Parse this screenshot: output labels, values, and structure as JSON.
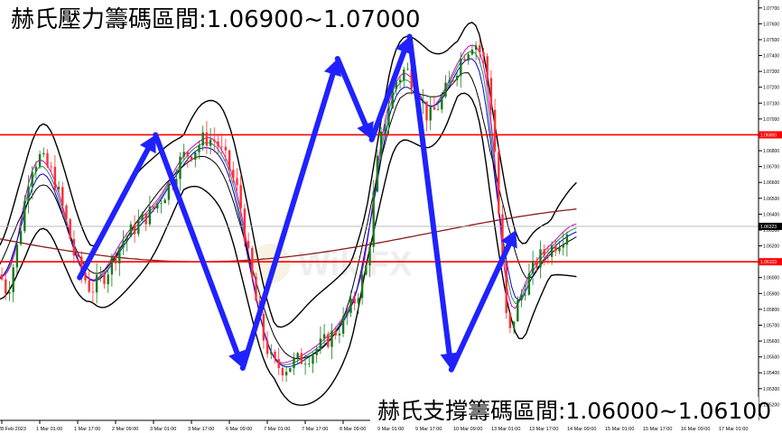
{
  "header": {
    "resistance_title": "赫氏壓力籌碼區間:1.06900~1.07000",
    "support_title": "赫氏支撐籌碼區間:1.06000~1.06100"
  },
  "watermark": {
    "text": "WikiFX"
  },
  "chart_data": {
    "type": "candlestick",
    "ylim": [
      1.051,
      1.0775
    ],
    "y_ticks": [
      "1.07700",
      "1.07600",
      "1.07500",
      "1.07400",
      "1.07300",
      "1.07200",
      "1.07100",
      "1.07000",
      "1.06900",
      "1.06800",
      "1.06700",
      "1.06600",
      "1.06500",
      "1.06400",
      "1.06300",
      "1.06200",
      "1.06100",
      "1.06000",
      "1.05900",
      "1.05800",
      "1.05700",
      "1.05600",
      "1.05500",
      "1.05400",
      "1.05300",
      "1.05200",
      "1.05100"
    ],
    "x_ticks": [
      "28 Feb 2023",
      "1 Mar 01:00",
      "1 Mar 17:00",
      "2 Mar 09:00",
      "3 Mar 01:00",
      "3 Mar 17:00",
      "6 Mar 09:00",
      "7 Mar 01:00",
      "7 Mar 17:00",
      "8 Mar 09:00",
      "9 Mar 01:00",
      "9 Mar 17:00",
      "10 Mar 09:00",
      "13 Mar 01:00",
      "13 Mar 17:00",
      "14 Mar 09:00",
      "15 Mar 01:00",
      "15 Mar 17:00",
      "16 Mar 09:00",
      "17 Mar 01:00"
    ],
    "resistance_level": 1.069,
    "support_level": 1.061,
    "current_price": "1.06323",
    "resistance_label": "1.06900",
    "support_label": "1.06103",
    "level_color": "#ff0000",
    "arrow_color": "#1f22ff",
    "price_path": [
      [
        0.0,
        1.0602
      ],
      [
        0.01,
        1.059
      ],
      [
        0.025,
        1.0625
      ],
      [
        0.04,
        1.067
      ],
      [
        0.052,
        1.0676
      ],
      [
        0.07,
        1.0665
      ],
      [
        0.085,
        1.064
      ],
      [
        0.1,
        1.061
      ],
      [
        0.12,
        1.0592
      ],
      [
        0.14,
        1.0603
      ],
      [
        0.16,
        1.0622
      ],
      [
        0.18,
        1.0633
      ],
      [
        0.2,
        1.0642
      ],
      [
        0.22,
        1.0655
      ],
      [
        0.24,
        1.0676
      ],
      [
        0.255,
        1.068
      ],
      [
        0.27,
        1.0688
      ],
      [
        0.285,
        1.0686
      ],
      [
        0.3,
        1.0672
      ],
      [
        0.315,
        1.0652
      ],
      [
        0.33,
        1.0605
      ],
      [
        0.345,
        1.0565
      ],
      [
        0.36,
        1.0545
      ],
      [
        0.375,
        1.0543
      ],
      [
        0.39,
        1.0547
      ],
      [
        0.41,
        1.0552
      ],
      [
        0.43,
        1.056
      ],
      [
        0.45,
        1.057
      ],
      [
        0.47,
        1.0588
      ],
      [
        0.485,
        1.061
      ],
      [
        0.495,
        1.0665
      ],
      [
        0.505,
        1.0695
      ],
      [
        0.52,
        1.0722
      ],
      [
        0.535,
        1.0732
      ],
      [
        0.55,
        1.0718
      ],
      [
        0.565,
        1.07
      ],
      [
        0.58,
        1.071
      ],
      [
        0.595,
        1.0725
      ],
      [
        0.61,
        1.074
      ],
      [
        0.625,
        1.075
      ],
      [
        0.64,
        1.0735
      ],
      [
        0.65,
        1.07
      ],
      [
        0.66,
        1.062
      ],
      [
        0.67,
        1.056
      ],
      [
        0.68,
        1.058
      ],
      [
        0.695,
        1.0598
      ],
      [
        0.71,
        1.0612
      ],
      [
        0.725,
        1.0618
      ],
      [
        0.74,
        1.0625
      ],
      [
        0.75,
        1.0632
      ]
    ],
    "arrows": [
      {
        "from": [
          0.105,
          1.06
        ],
        "to": [
          0.205,
          1.069
        ]
      },
      {
        "from": [
          0.205,
          1.069
        ],
        "to": [
          0.32,
          1.0543
        ]
      },
      {
        "from": [
          0.32,
          1.0543
        ],
        "to": [
          0.445,
          1.0738
        ]
      },
      {
        "from": [
          0.445,
          1.0738
        ],
        "to": [
          0.49,
          1.0687
        ]
      },
      {
        "from": [
          0.49,
          1.0687
        ],
        "to": [
          0.54,
          1.0752
        ]
      },
      {
        "from": [
          0.54,
          1.0752
        ],
        "to": [
          0.595,
          1.0542
        ]
      },
      {
        "from": [
          0.595,
          1.0542
        ],
        "to": [
          0.68,
          1.063
        ]
      }
    ]
  }
}
